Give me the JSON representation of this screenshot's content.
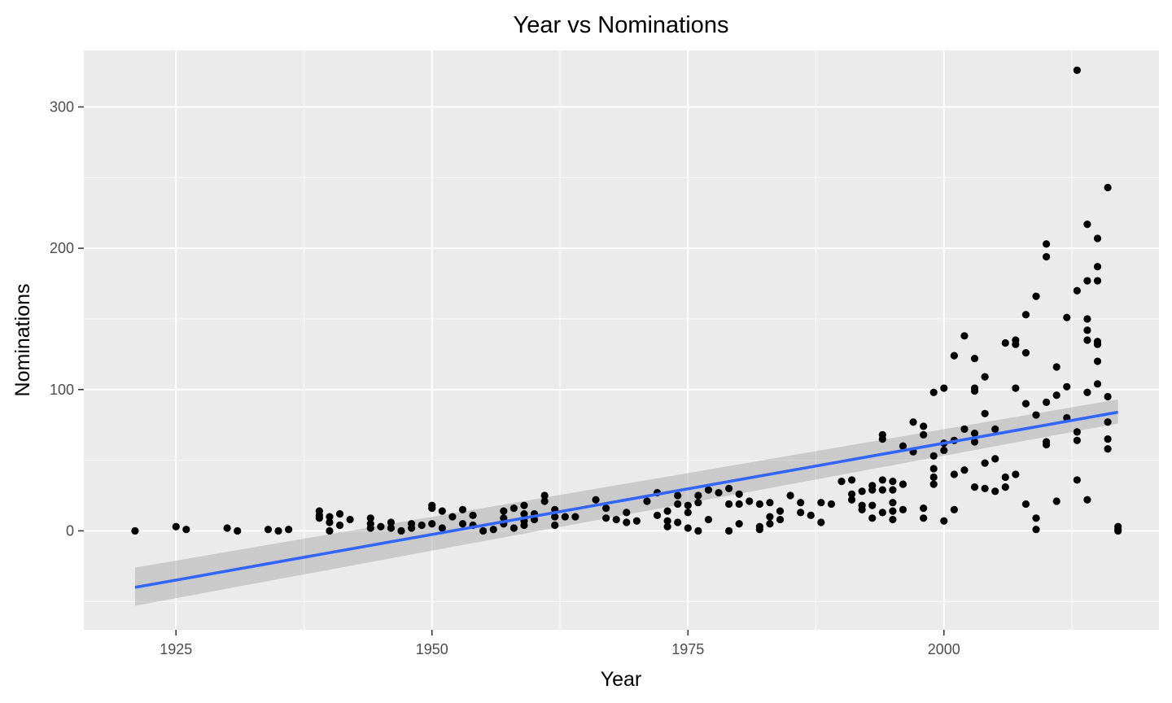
{
  "chart_data": {
    "type": "scatter",
    "title": "Year vs Nominations",
    "xlabel": "Year",
    "ylabel": "Nominations",
    "xlim": [
      1916,
      2021
    ],
    "ylim": [
      -70,
      340
    ],
    "x_ticks": [
      1925,
      1950,
      1975,
      2000
    ],
    "x_tick_labels": [
      "1925",
      "1950",
      "1975",
      "2000"
    ],
    "y_ticks": [
      0,
      100,
      200,
      300
    ],
    "y_tick_labels": [
      "0",
      "100",
      "200",
      "300"
    ],
    "grid": true,
    "legend": "none",
    "colors": {
      "panel": "#ebebeb",
      "grid": "#ffffff",
      "points": "#000000",
      "trend": "#3366ff",
      "band": "#999999"
    },
    "trend": {
      "type": "linear",
      "x": [
        1921,
        2017
      ],
      "y": [
        -40,
        84
      ],
      "band_lower": [
        -53,
        76
      ],
      "band_upper": [
        -26,
        93
      ]
    },
    "points": [
      [
        1921,
        0
      ],
      [
        1925,
        3
      ],
      [
        1926,
        1
      ],
      [
        1930,
        2
      ],
      [
        1931,
        0
      ],
      [
        1934,
        1
      ],
      [
        1935,
        0
      ],
      [
        1936,
        1
      ],
      [
        1939,
        14
      ],
      [
        1939,
        11
      ],
      [
        1939,
        9
      ],
      [
        1940,
        10
      ],
      [
        1940,
        6
      ],
      [
        1940,
        0
      ],
      [
        1941,
        12
      ],
      [
        1941,
        4
      ],
      [
        1942,
        8
      ],
      [
        1944,
        9
      ],
      [
        1944,
        5
      ],
      [
        1944,
        2
      ],
      [
        1945,
        3
      ],
      [
        1946,
        6
      ],
      [
        1946,
        2
      ],
      [
        1947,
        0
      ],
      [
        1948,
        5
      ],
      [
        1948,
        2
      ],
      [
        1949,
        4
      ],
      [
        1950,
        18
      ],
      [
        1950,
        16
      ],
      [
        1950,
        5
      ],
      [
        1951,
        14
      ],
      [
        1951,
        2
      ],
      [
        1952,
        10
      ],
      [
        1953,
        15
      ],
      [
        1953,
        5
      ],
      [
        1954,
        11
      ],
      [
        1954,
        4
      ],
      [
        1955,
        0
      ],
      [
        1956,
        1
      ],
      [
        1957,
        14
      ],
      [
        1957,
        9
      ],
      [
        1957,
        5
      ],
      [
        1958,
        16
      ],
      [
        1958,
        2
      ],
      [
        1959,
        18
      ],
      [
        1959,
        12
      ],
      [
        1959,
        7
      ],
      [
        1959,
        4
      ],
      [
        1960,
        12
      ],
      [
        1960,
        8
      ],
      [
        1961,
        25
      ],
      [
        1961,
        21
      ],
      [
        1962,
        15
      ],
      [
        1962,
        10
      ],
      [
        1962,
        4
      ],
      [
        1963,
        10
      ],
      [
        1964,
        10
      ],
      [
        1966,
        22
      ],
      [
        1967,
        16
      ],
      [
        1967,
        9
      ],
      [
        1968,
        8
      ],
      [
        1969,
        13
      ],
      [
        1969,
        6
      ],
      [
        1970,
        7
      ],
      [
        1971,
        21
      ],
      [
        1972,
        27
      ],
      [
        1972,
        11
      ],
      [
        1973,
        14
      ],
      [
        1973,
        7
      ],
      [
        1973,
        3
      ],
      [
        1974,
        25
      ],
      [
        1974,
        19
      ],
      [
        1974,
        6
      ],
      [
        1975,
        18
      ],
      [
        1975,
        13
      ],
      [
        1975,
        2
      ],
      [
        1976,
        25
      ],
      [
        1976,
        20
      ],
      [
        1976,
        0
      ],
      [
        1977,
        29
      ],
      [
        1977,
        8
      ],
      [
        1978,
        27
      ],
      [
        1979,
        30
      ],
      [
        1979,
        19
      ],
      [
        1979,
        0
      ],
      [
        1980,
        26
      ],
      [
        1980,
        19
      ],
      [
        1980,
        5
      ],
      [
        1981,
        21
      ],
      [
        1982,
        19
      ],
      [
        1982,
        3
      ],
      [
        1982,
        1
      ],
      [
        1983,
        20
      ],
      [
        1983,
        10
      ],
      [
        1983,
        5
      ],
      [
        1984,
        14
      ],
      [
        1984,
        8
      ],
      [
        1985,
        25
      ],
      [
        1986,
        20
      ],
      [
        1986,
        13
      ],
      [
        1987,
        11
      ],
      [
        1988,
        20
      ],
      [
        1988,
        6
      ],
      [
        1989,
        19
      ],
      [
        1990,
        35
      ],
      [
        1991,
        36
      ],
      [
        1991,
        26
      ],
      [
        1991,
        22
      ],
      [
        1992,
        28
      ],
      [
        1992,
        18
      ],
      [
        1992,
        15
      ],
      [
        1993,
        32
      ],
      [
        1993,
        29
      ],
      [
        1993,
        18
      ],
      [
        1993,
        9
      ],
      [
        1994,
        68
      ],
      [
        1994,
        65
      ],
      [
        1994,
        36
      ],
      [
        1994,
        29
      ],
      [
        1994,
        13
      ],
      [
        1995,
        35
      ],
      [
        1995,
        29
      ],
      [
        1995,
        20
      ],
      [
        1995,
        14
      ],
      [
        1995,
        8
      ],
      [
        1996,
        60
      ],
      [
        1996,
        33
      ],
      [
        1996,
        15
      ],
      [
        1997,
        77
      ],
      [
        1997,
        56
      ],
      [
        1998,
        74
      ],
      [
        1998,
        68
      ],
      [
        1998,
        16
      ],
      [
        1998,
        9
      ],
      [
        1999,
        98
      ],
      [
        1999,
        53
      ],
      [
        1999,
        44
      ],
      [
        1999,
        38
      ],
      [
        1999,
        33
      ],
      [
        2000,
        101
      ],
      [
        2000,
        62
      ],
      [
        2000,
        57
      ],
      [
        2000,
        7
      ],
      [
        2001,
        124
      ],
      [
        2001,
        64
      ],
      [
        2001,
        40
      ],
      [
        2001,
        15
      ],
      [
        2002,
        138
      ],
      [
        2002,
        72
      ],
      [
        2002,
        43
      ],
      [
        2003,
        122
      ],
      [
        2003,
        101
      ],
      [
        2003,
        99
      ],
      [
        2003,
        69
      ],
      [
        2003,
        63
      ],
      [
        2003,
        31
      ],
      [
        2004,
        109
      ],
      [
        2004,
        83
      ],
      [
        2004,
        48
      ],
      [
        2004,
        30
      ],
      [
        2005,
        72
      ],
      [
        2005,
        51
      ],
      [
        2005,
        28
      ],
      [
        2006,
        133
      ],
      [
        2006,
        38
      ],
      [
        2006,
        31
      ],
      [
        2007,
        135
      ],
      [
        2007,
        132
      ],
      [
        2007,
        101
      ],
      [
        2007,
        40
      ],
      [
        2008,
        153
      ],
      [
        2008,
        126
      ],
      [
        2008,
        90
      ],
      [
        2008,
        19
      ],
      [
        2009,
        166
      ],
      [
        2009,
        82
      ],
      [
        2009,
        9
      ],
      [
        2009,
        1
      ],
      [
        2010,
        203
      ],
      [
        2010,
        194
      ],
      [
        2010,
        91
      ],
      [
        2010,
        63
      ],
      [
        2010,
        61
      ],
      [
        2011,
        116
      ],
      [
        2011,
        96
      ],
      [
        2011,
        21
      ],
      [
        2012,
        151
      ],
      [
        2012,
        102
      ],
      [
        2012,
        80
      ],
      [
        2013,
        326
      ],
      [
        2013,
        170
      ],
      [
        2013,
        70
      ],
      [
        2013,
        64
      ],
      [
        2013,
        36
      ],
      [
        2014,
        217
      ],
      [
        2014,
        177
      ],
      [
        2014,
        150
      ],
      [
        2014,
        142
      ],
      [
        2014,
        135
      ],
      [
        2014,
        98
      ],
      [
        2014,
        22
      ],
      [
        2015,
        207
      ],
      [
        2015,
        187
      ],
      [
        2015,
        177
      ],
      [
        2015,
        134
      ],
      [
        2015,
        132
      ],
      [
        2015,
        120
      ],
      [
        2015,
        104
      ],
      [
        2016,
        243
      ],
      [
        2016,
        95
      ],
      [
        2016,
        77
      ],
      [
        2016,
        65
      ],
      [
        2016,
        58
      ],
      [
        2017,
        3
      ],
      [
        2017,
        1
      ],
      [
        2017,
        0
      ]
    ]
  }
}
